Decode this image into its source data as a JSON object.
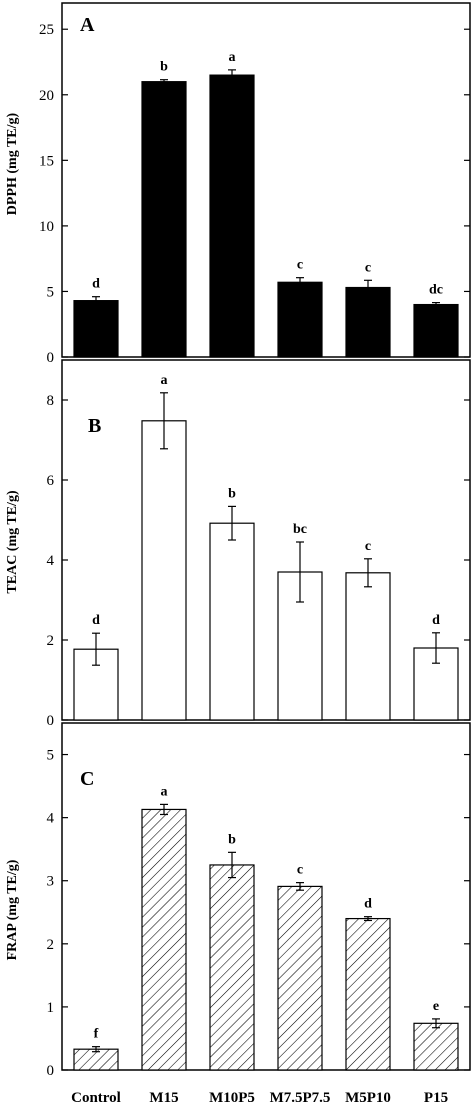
{
  "chart_data": [
    {
      "type": "bar",
      "panel": "A",
      "ylabel": "DPPH (mg TE/g)",
      "ylim": [
        0,
        27
      ],
      "yticks": [
        0,
        5,
        10,
        15,
        20,
        25
      ],
      "categories": [
        "Control",
        "M15",
        "M10P5",
        "M7.5P7.5",
        "M5P10",
        "P15"
      ],
      "values": [
        4.3,
        21.0,
        21.5,
        5.7,
        5.3,
        4.0
      ],
      "errors": [
        0.3,
        0.15,
        0.4,
        0.35,
        0.55,
        0.15
      ],
      "letters": [
        "d",
        "b",
        "a",
        "c",
        "c",
        "dc"
      ],
      "fill": "solid",
      "bar_color": "#000000"
    },
    {
      "type": "bar",
      "panel": "B",
      "ylabel": "TEAC (mg TE/g)",
      "ylim": [
        0,
        9
      ],
      "yticks": [
        0,
        2,
        4,
        6,
        8
      ],
      "categories": [
        "Control",
        "M15",
        "M10P5",
        "M7.5P7.5",
        "M5P10",
        "P15"
      ],
      "values": [
        1.77,
        7.48,
        4.92,
        3.7,
        3.68,
        1.8
      ],
      "errors": [
        0.4,
        0.7,
        0.42,
        0.75,
        0.35,
        0.38
      ],
      "letters": [
        "d",
        "a",
        "b",
        "bc",
        "c",
        "d"
      ],
      "fill": "white",
      "bar_color": "#ffffff"
    },
    {
      "type": "bar",
      "panel": "C",
      "ylabel": "FRAP (mg TE/g)",
      "ylim": [
        0,
        5.5
      ],
      "yticks": [
        0,
        1,
        2,
        3,
        4,
        5
      ],
      "categories": [
        "Control",
        "M15",
        "M10P5",
        "M7.5P7.5",
        "M5P10",
        "P15"
      ],
      "values": [
        0.33,
        4.13,
        3.25,
        2.91,
        2.4,
        0.74
      ],
      "errors": [
        0.04,
        0.08,
        0.2,
        0.06,
        0.03,
        0.07
      ],
      "letters": [
        "f",
        "a",
        "b",
        "c",
        "d",
        "e"
      ],
      "fill": "hatched",
      "bar_color": "#ffffff"
    }
  ],
  "xaxis": {
    "tick_labels": [
      "Control",
      "M15",
      "M10P5",
      "M7.5P7.5",
      "M5P10",
      "P15"
    ]
  }
}
